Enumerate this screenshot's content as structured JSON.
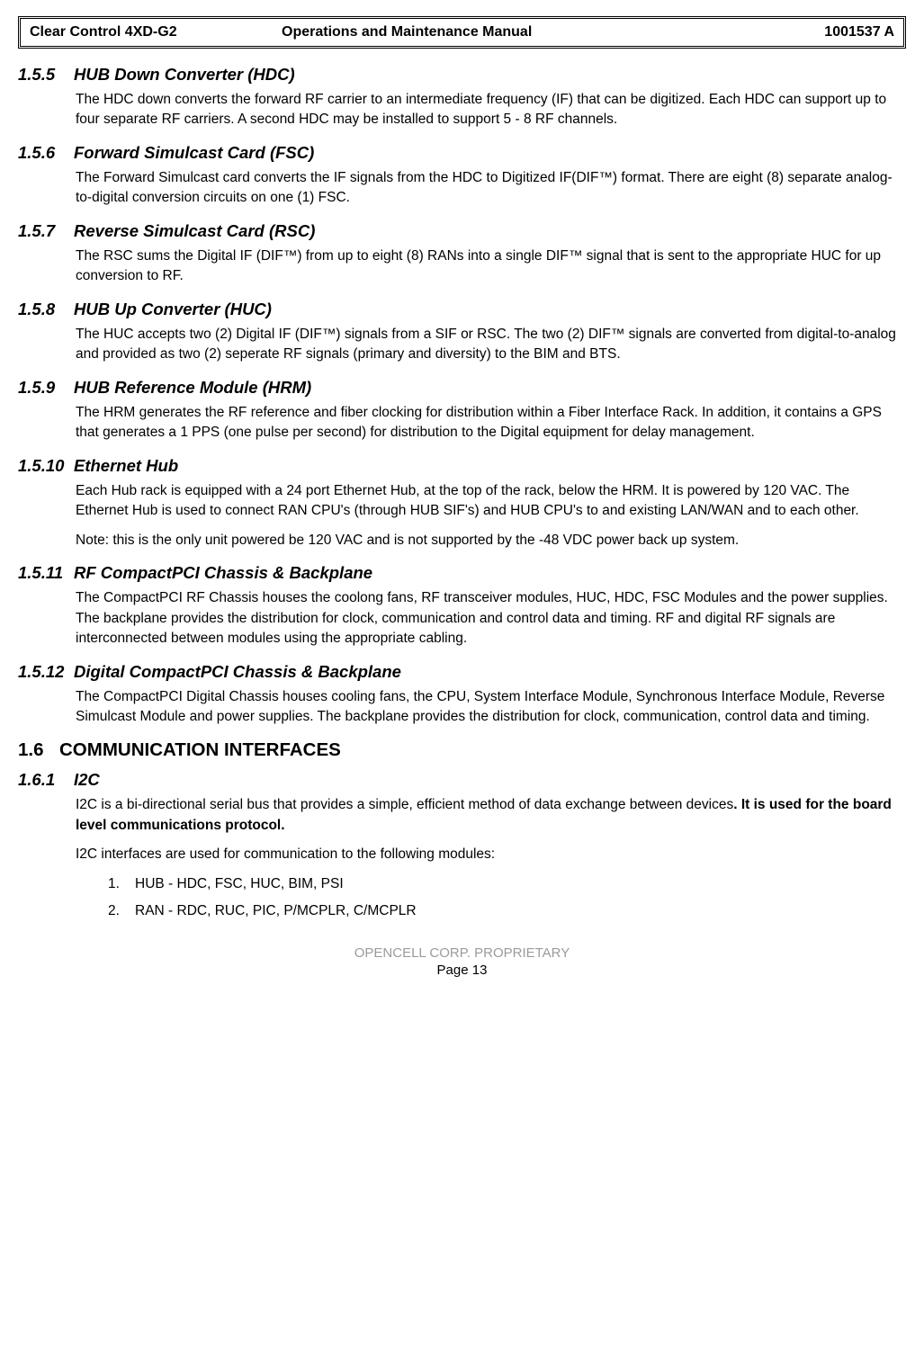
{
  "header": {
    "left": "Clear Control 4XD-G2",
    "center": "Operations and Maintenance Manual",
    "right": "1001537 A"
  },
  "sections": [
    {
      "num": "1.5.5",
      "title": "HUB Down Converter (HDC)",
      "paras": [
        "The HDC down converts the forward RF carrier to an intermediate frequency (IF) that can be digitized.  Each HDC can support up to four separate RF carriers.  A second HDC may be installed to support 5 - 8 RF channels."
      ]
    },
    {
      "num": "1.5.6",
      "title": "Forward Simulcast Card (FSC)",
      "paras": [
        "The Forward Simulcast card converts the IF signals from the HDC to Digitized IF(DIF™) format.  There are eight (8) separate analog-to-digital conversion circuits on one (1) FSC."
      ]
    },
    {
      "num": "1.5.7",
      "title": " Reverse Simulcast Card (RSC)",
      "paras": [
        "The RSC sums the Digital IF (DIF™) from up to eight (8) RANs into a single DIF™ signal that is sent to the appropriate HUC for up conversion to RF."
      ]
    },
    {
      "num": "1.5.8",
      "title": " HUB Up Converter (HUC)",
      "paras": [
        "The HUC accepts two (2) Digital IF (DIF™) signals from a SIF or RSC.  The two (2) DIF™ signals are converted from digital-to-analog and provided as two (2) seperate RF signals (primary and diversity) to the BIM and BTS."
      ]
    },
    {
      "num": "1.5.9",
      "title": "HUB Reference Module (HRM)",
      "paras": [
        "The HRM generates the RF reference and fiber clocking for distribution within a Fiber Interface Rack.  In addition, it contains a GPS that generates a 1 PPS (one pulse per second) for distribution to the Digital equipment for delay management."
      ]
    },
    {
      "num": "1.5.10",
      "title": "Ethernet Hub",
      "paras": [
        "Each Hub rack is equipped with a 24 port Ethernet Hub, at the top of the rack, below the HRM.  It is powered by 120 VAC.  The Ethernet Hub is used to connect RAN CPU's (through HUB SIF's) and HUB CPU's to and existing LAN/WAN and to each other.",
        "Note: this is the only unit powered be 120 VAC and is not supported by the -48 VDC power back up system."
      ]
    },
    {
      "num": "1.5.11",
      "title": "RF CompactPCI Chassis & Backplane",
      "paras": [
        "The CompactPCI RF Chassis houses the coolong fans, RF transceiver modules, HUC, HDC, FSC Modules and the power supplies.  The backplane provides the distribution for clock, communication and control data and timing.  RF and digital RF signals are interconnected between modules using the appropriate cabling."
      ]
    },
    {
      "num": "1.5.12",
      "title": "Digital CompactPCI Chassis & Backplane",
      "paras": [
        "The CompactPCI Digital Chassis houses cooling fans, the CPU, System Interface Module, Synchronous Interface Module, Reverse Simulcast Module and power supplies.  The backplane provides the distribution for clock, communication, control data and timing."
      ]
    }
  ],
  "majorHeading": {
    "num": "1.6",
    "title": "COMMUNICATION INTERFACES"
  },
  "i2c": {
    "num": "1.6.1",
    "title": "I2C",
    "p1_a": "I2C is a bi-directional serial bus that provides a simple, efficient method of data exchange between devices",
    "p1_b": ".  It is used for the board level communications protocol.",
    "p2": "I2C interfaces are used for communication to the following modules:",
    "list": [
      {
        "n": "1.",
        "t": "HUB - HDC, FSC, HUC, BIM, PSI"
      },
      {
        "n": "2.",
        "t": "RAN - RDC, RUC, PIC, P/MCPLR, C/MCPLR"
      }
    ]
  },
  "footer": {
    "proprietary": "OPENCELL CORP.  PROPRIETARY",
    "page": "Page 13"
  }
}
